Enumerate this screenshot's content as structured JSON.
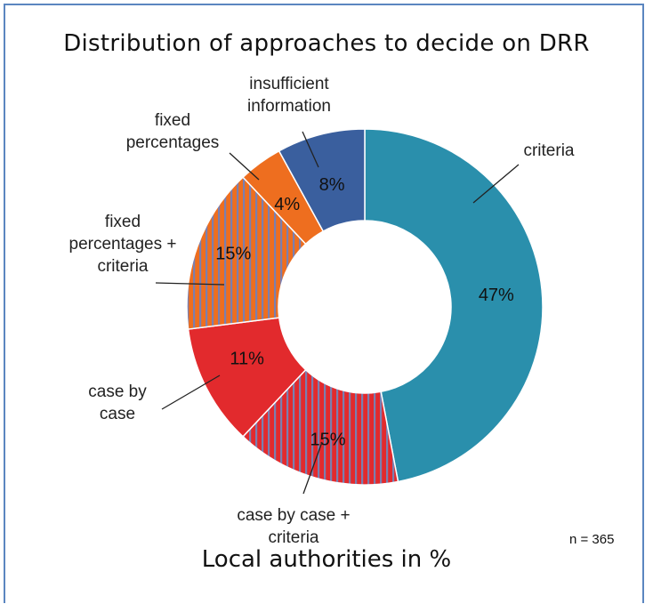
{
  "chart_data": {
    "type": "pie",
    "title": "Distribution of approaches to decide on DRR",
    "subtitle": "Local authorities in %",
    "note": "n = 365",
    "slices": [
      {
        "label": "criteria",
        "value": 47,
        "value_label": "47%",
        "color": "#2a8fac",
        "pattern": "solid"
      },
      {
        "label": "case by case + criteria",
        "value": 15,
        "value_label": "15%",
        "color": "#e22a2d",
        "pattern": "striped"
      },
      {
        "label": "case by case",
        "value": 11,
        "value_label": "11%",
        "color": "#e22a2d",
        "pattern": "solid"
      },
      {
        "label": "fixed percentages + criteria",
        "value": 15,
        "value_label": "15%",
        "color": "#ee6e1f",
        "pattern": "striped"
      },
      {
        "label": "fixed percentages",
        "value": 4,
        "value_label": "4%",
        "color": "#ee6e1f",
        "pattern": "solid"
      },
      {
        "label": "insufficient information",
        "value": 8,
        "value_label": "8%",
        "color": "#3a5f9e",
        "pattern": "solid"
      }
    ],
    "stripe_color": "#7a7fb0"
  },
  "label_lines": {
    "criteria": [
      "criteria"
    ],
    "case_by_case_criteria": [
      "case by case +",
      "criteria"
    ],
    "case_by_case": [
      "case by",
      "case"
    ],
    "fixed_percentages_criteria": [
      "fixed",
      "percentages +",
      "criteria"
    ],
    "fixed_percentages": [
      "fixed",
      "percentages"
    ],
    "insufficient_information": [
      "insufficient",
      "information"
    ]
  }
}
